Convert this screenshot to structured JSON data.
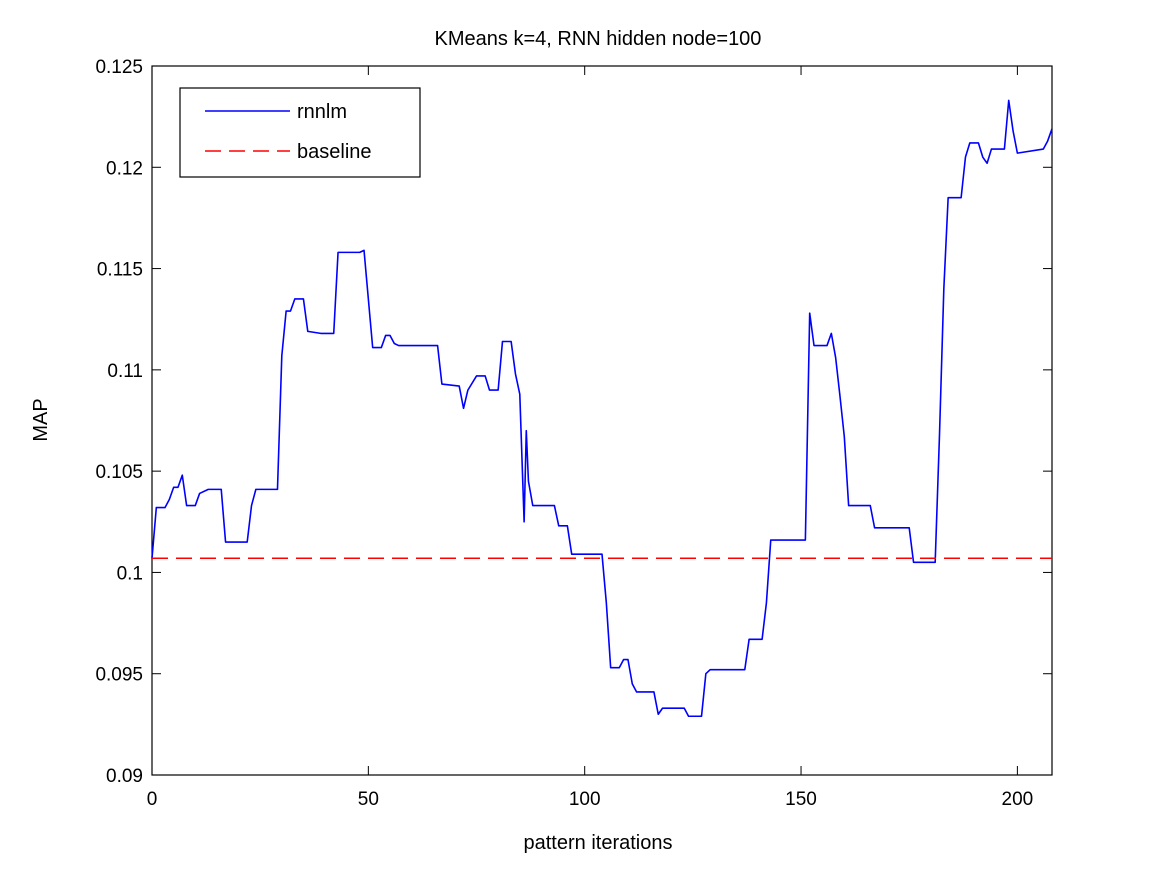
{
  "chart_data": {
    "type": "line",
    "title": "KMeans k=4, RNN hidden node=100",
    "xlabel": "pattern iterations",
    "ylabel": "MAP",
    "xlim": [
      0,
      208
    ],
    "ylim": [
      0.09,
      0.125
    ],
    "xticks": [
      0,
      50,
      100,
      150,
      200
    ],
    "xtick_labels": [
      "0",
      "50",
      "100",
      "150",
      "200"
    ],
    "yticks": [
      0.09,
      0.095,
      0.1,
      0.105,
      0.11,
      0.115,
      0.12,
      0.125
    ],
    "ytick_labels": [
      "0.09",
      "0.095",
      "0.1",
      "0.105",
      "0.11",
      "0.115",
      "0.12",
      "0.125"
    ],
    "grid": false,
    "legend_position": "top-left",
    "series": [
      {
        "name": "rnnlm",
        "color": "#0000ff",
        "style": "solid",
        "points": [
          [
            0,
            0.1007
          ],
          [
            1,
            0.1032
          ],
          [
            3,
            0.1032
          ],
          [
            4,
            0.1036
          ],
          [
            5,
            0.1042
          ],
          [
            6,
            0.1042
          ],
          [
            7,
            0.1048
          ],
          [
            8,
            0.1033
          ],
          [
            10,
            0.1033
          ],
          [
            11,
            0.1039
          ],
          [
            13,
            0.1041
          ],
          [
            16,
            0.1041
          ],
          [
            17,
            0.1015
          ],
          [
            22,
            0.1015
          ],
          [
            23,
            0.1033
          ],
          [
            24,
            0.1041
          ],
          [
            29,
            0.1041
          ],
          [
            30,
            0.1107
          ],
          [
            31,
            0.1129
          ],
          [
            32,
            0.1129
          ],
          [
            33,
            0.1135
          ],
          [
            35,
            0.1135
          ],
          [
            36,
            0.1119
          ],
          [
            39,
            0.1118
          ],
          [
            42,
            0.1118
          ],
          [
            43,
            0.1158
          ],
          [
            48,
            0.1158
          ],
          [
            49,
            0.1159
          ],
          [
            51,
            0.1111
          ],
          [
            53,
            0.1111
          ],
          [
            54,
            0.1117
          ],
          [
            55,
            0.1117
          ],
          [
            56,
            0.1113
          ],
          [
            57,
            0.1112
          ],
          [
            66,
            0.1112
          ],
          [
            67,
            0.1093
          ],
          [
            71,
            0.1092
          ],
          [
            72,
            0.1081
          ],
          [
            73,
            0.109
          ],
          [
            75,
            0.1097
          ],
          [
            77,
            0.1097
          ],
          [
            78,
            0.109
          ],
          [
            80,
            0.109
          ],
          [
            81,
            0.1114
          ],
          [
            83,
            0.1114
          ],
          [
            84,
            0.1098
          ],
          [
            85,
            0.1088
          ],
          [
            86,
            0.1025
          ],
          [
            86.5,
            0.107
          ],
          [
            87,
            0.1045
          ],
          [
            88,
            0.1033
          ],
          [
            93,
            0.1033
          ],
          [
            94,
            0.1023
          ],
          [
            96,
            0.1023
          ],
          [
            97,
            0.1009
          ],
          [
            102,
            0.1009
          ],
          [
            104,
            0.1009
          ],
          [
            105,
            0.0985
          ],
          [
            106,
            0.0953
          ],
          [
            108,
            0.0953
          ],
          [
            109,
            0.0957
          ],
          [
            110,
            0.0957
          ],
          [
            111,
            0.0945
          ],
          [
            112,
            0.0941
          ],
          [
            116,
            0.0941
          ],
          [
            117,
            0.093
          ],
          [
            118,
            0.0933
          ],
          [
            123,
            0.0933
          ],
          [
            124,
            0.0929
          ],
          [
            127,
            0.0929
          ],
          [
            128,
            0.095
          ],
          [
            129,
            0.0952
          ],
          [
            137,
            0.0952
          ],
          [
            138,
            0.0967
          ],
          [
            141,
            0.0967
          ],
          [
            142,
            0.0985
          ],
          [
            143,
            0.1016
          ],
          [
            151,
            0.1016
          ],
          [
            152,
            0.1128
          ],
          [
            153,
            0.1112
          ],
          [
            154,
            0.1112
          ],
          [
            156,
            0.1112
          ],
          [
            157,
            0.1118
          ],
          [
            158,
            0.1106
          ],
          [
            159,
            0.1087
          ],
          [
            160,
            0.1067
          ],
          [
            161,
            0.1033
          ],
          [
            166,
            0.1033
          ],
          [
            167,
            0.1022
          ],
          [
            174,
            0.1022
          ],
          [
            175,
            0.1022
          ],
          [
            176,
            0.1005
          ],
          [
            181,
            0.1005
          ],
          [
            182,
            0.1068
          ],
          [
            183,
            0.114
          ],
          [
            184,
            0.1185
          ],
          [
            187,
            0.1185
          ],
          [
            188,
            0.1205
          ],
          [
            189,
            0.1212
          ],
          [
            191,
            0.1212
          ],
          [
            192,
            0.1205
          ],
          [
            193,
            0.1202
          ],
          [
            194,
            0.1209
          ],
          [
            197,
            0.1209
          ],
          [
            198,
            0.1233
          ],
          [
            199,
            0.1218
          ],
          [
            200,
            0.1207
          ],
          [
            206,
            0.1209
          ],
          [
            207,
            0.1213
          ],
          [
            208,
            0.1219
          ]
        ]
      },
      {
        "name": "baseline",
        "color": "#ff0000",
        "style": "dashed",
        "points": [
          [
            0,
            0.1007
          ],
          [
            208,
            0.1007
          ]
        ]
      }
    ]
  }
}
